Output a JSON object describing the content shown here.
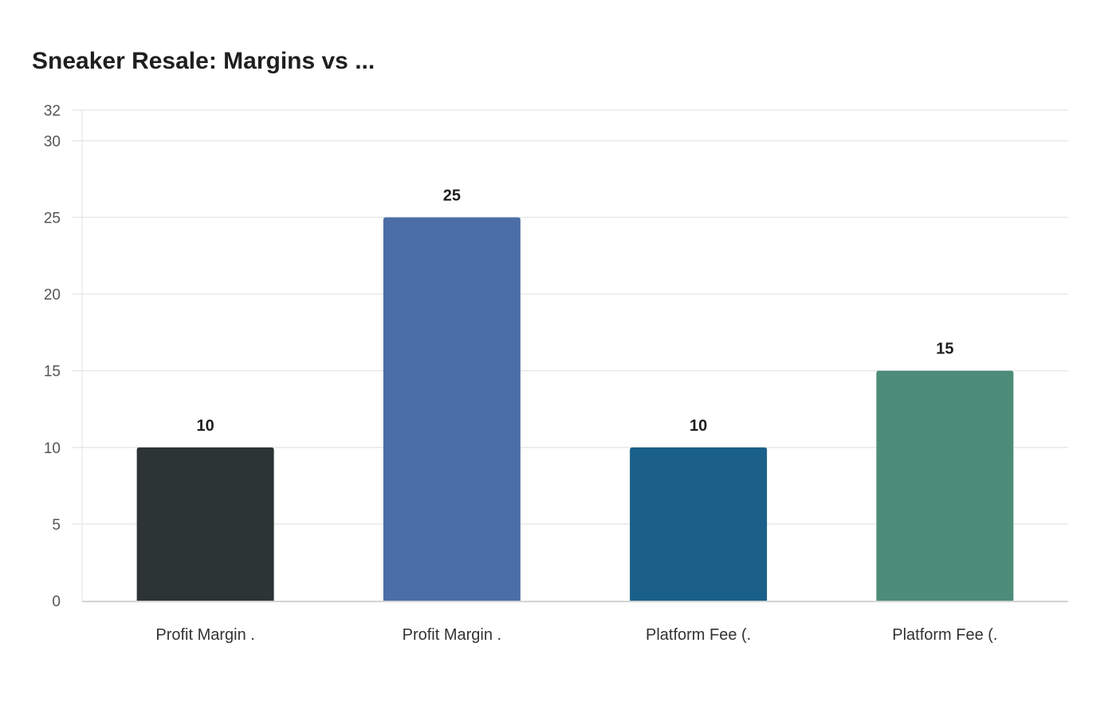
{
  "chart_data": {
    "type": "bar",
    "title": "Sneaker Resale: Margins vs ...",
    "categories": [
      "Profit Margin .",
      "Profit Margin .",
      "Platform Fee (.",
      "Platform Fee (."
    ],
    "values": [
      10,
      25,
      10,
      15
    ],
    "colors": [
      "#2d3436",
      "#4a6ea5",
      "#1a6089",
      "#4e8c7a"
    ],
    "xlabel": "",
    "ylabel": "",
    "ylim": [
      0,
      32
    ],
    "yticks": [
      0,
      5,
      10,
      15,
      20,
      25,
      30,
      32
    ],
    "grid": true,
    "legend": "none"
  }
}
